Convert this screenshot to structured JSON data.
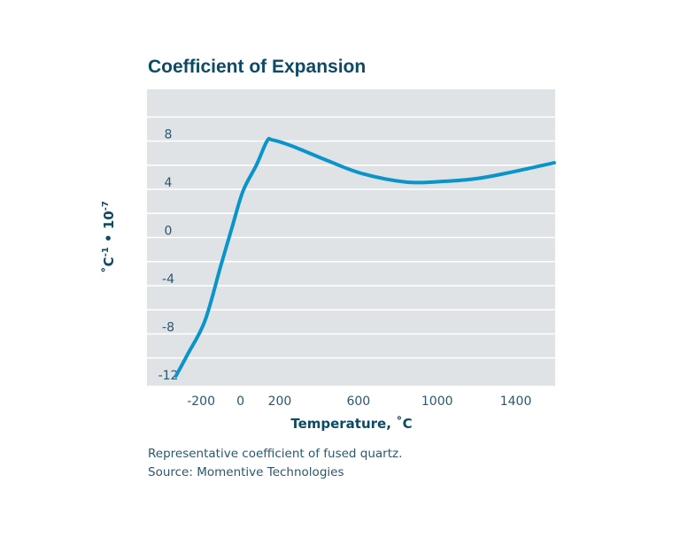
{
  "chart_data": {
    "type": "line",
    "title": "Coefficient of Expansion",
    "xlabel": "Temperature, ˚C",
    "ylabel": "˚C-1 • 10-7",
    "xlim": [
      -475,
      1600
    ],
    "ylim": [
      -12.3,
      12.3
    ],
    "x_ticks": [
      -200,
      0,
      200,
      600,
      1000,
      1400
    ],
    "y_ticks": [
      8,
      4,
      0,
      -4,
      -8,
      -12
    ],
    "grid": true,
    "colors": {
      "line": "#0a94c9",
      "background": "#dfe3e6",
      "title": "#0d4a66"
    },
    "series": [
      {
        "x": [
          -328,
          -265,
          -180,
          -99,
          -45,
          13,
          81,
          135,
          162,
          261,
          440,
          620,
          845,
          1025,
          1205,
          1385,
          1595
        ],
        "y": [
          -11.5,
          -9.6,
          -6.9,
          -2.3,
          0.7,
          3.85,
          6.0,
          8.0,
          8.1,
          7.6,
          6.4,
          5.3,
          4.6,
          4.65,
          4.9,
          5.45,
          6.2
        ]
      }
    ]
  },
  "caption": {
    "line1": "Representative coefficient of fused quartz.",
    "line2": "Source: Momentive Technologies"
  }
}
